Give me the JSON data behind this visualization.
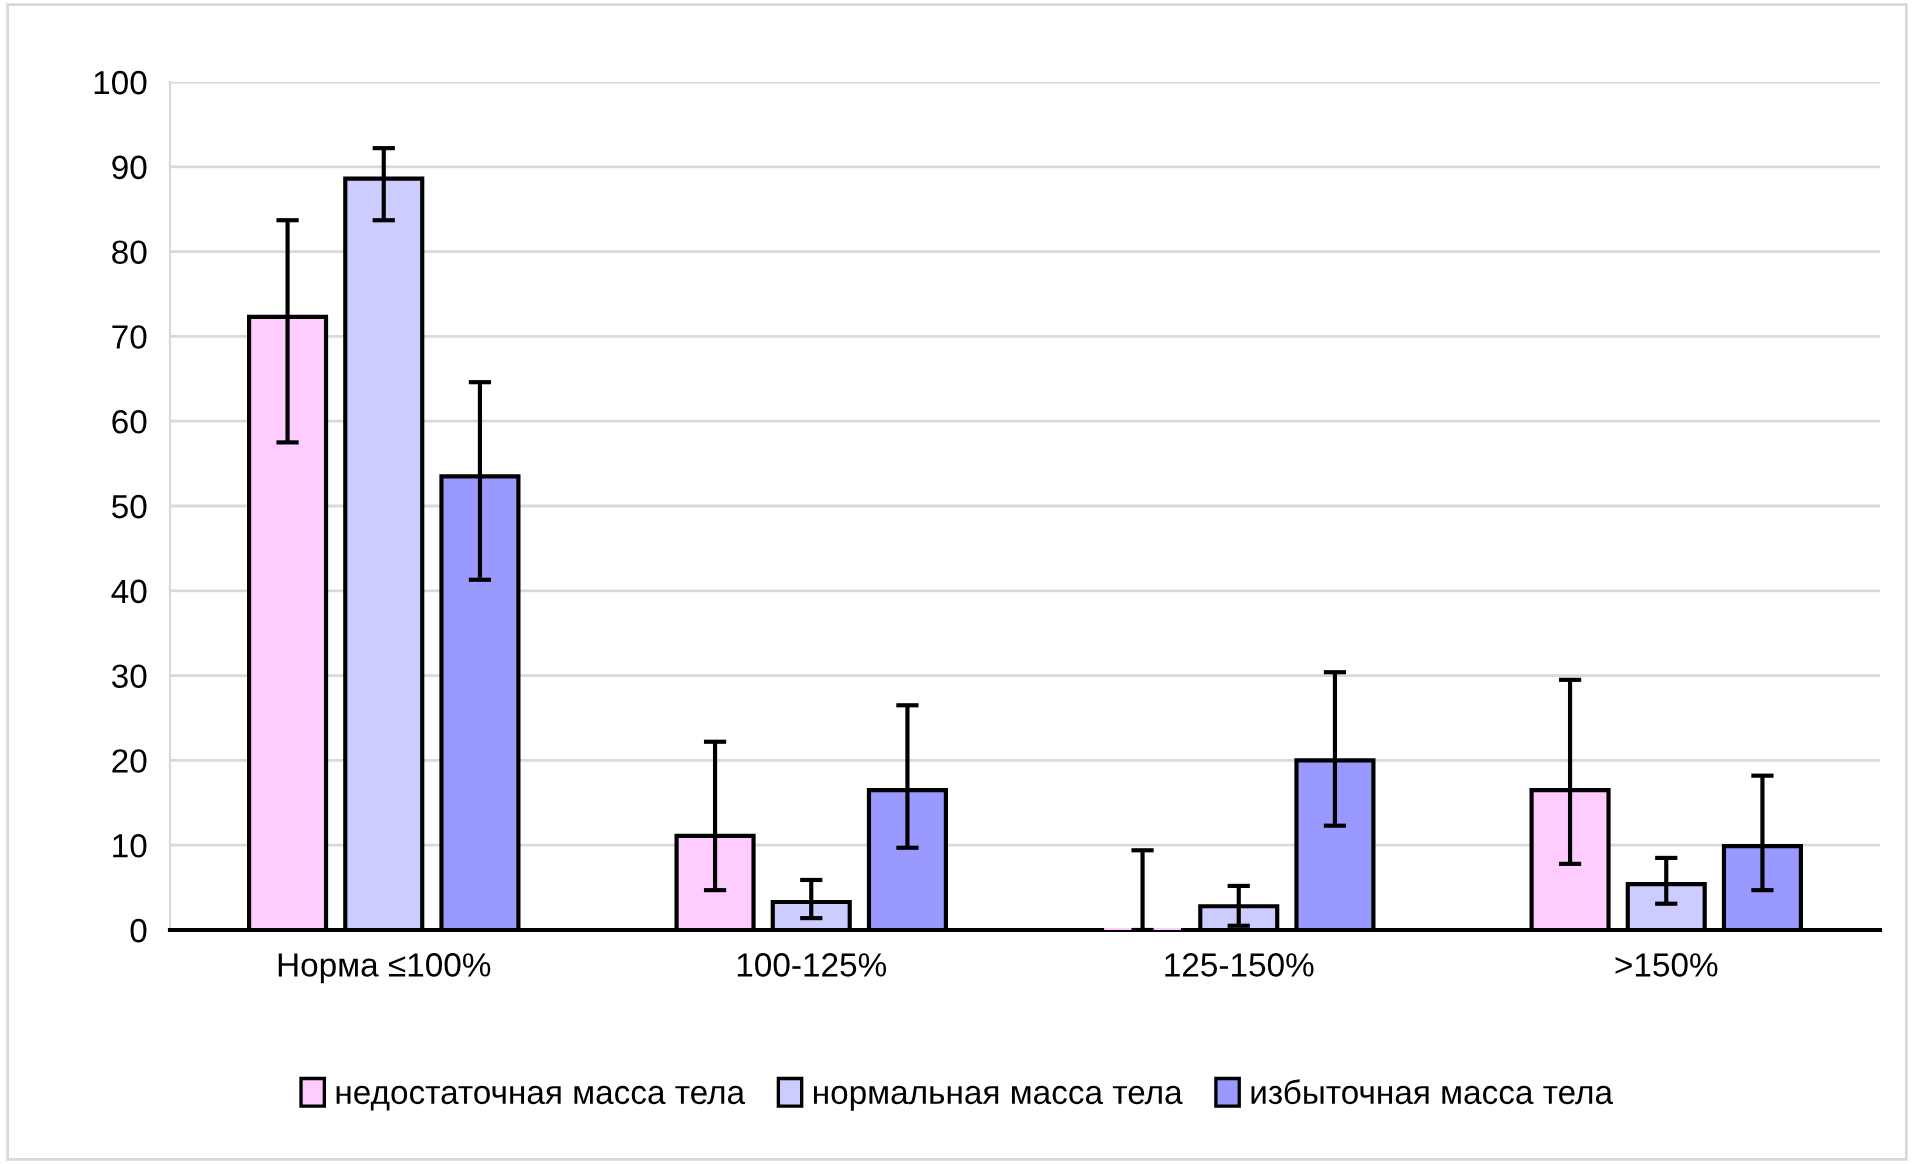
{
  "chart_data": {
    "type": "bar",
    "categories": [
      "Норма ≤100%",
      "100-125%",
      "125-150%",
      ">150%"
    ],
    "series": [
      {
        "name": "недостаточная масса тела",
        "color": "#ffccff",
        "values": [
          72.3,
          11.1,
          0,
          16.5
        ],
        "errors": [
          [
            57.5,
            83.7
          ],
          [
            4.7,
            22.2
          ],
          [
            0,
            9.4
          ],
          [
            7.8,
            29.5
          ]
        ]
      },
      {
        "name": "нормальная масса тела",
        "color": "#ccccff",
        "values": [
          88.6,
          3.3,
          2.8,
          5.4
        ],
        "errors": [
          [
            83.7,
            92.2
          ],
          [
            1.4,
            5.9
          ],
          [
            0.5,
            5.2
          ],
          [
            3.1,
            8.5
          ]
        ]
      },
      {
        "name": "избыточная масса тела",
        "color": "#9999ff",
        "values": [
          53.5,
          16.5,
          20,
          9.9
        ],
        "errors": [
          [
            41.3,
            64.6
          ],
          [
            9.7,
            26.5
          ],
          [
            12.3,
            30.4
          ],
          [
            4.7,
            18.2
          ]
        ]
      }
    ],
    "ylim": [
      0,
      100
    ],
    "yticks": [
      0,
      10,
      20,
      30,
      40,
      50,
      60,
      70,
      80,
      90,
      100
    ],
    "grid": "y",
    "legend": "bottom"
  }
}
